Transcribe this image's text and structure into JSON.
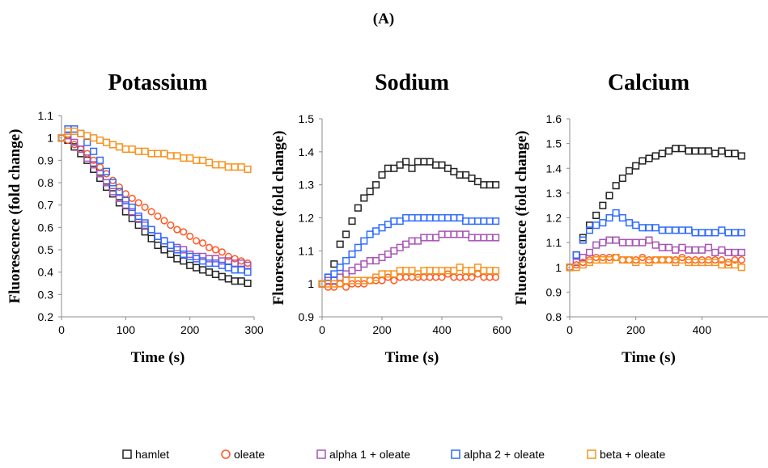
{
  "figure": {
    "panel_label": "(A)"
  },
  "legend": [
    {
      "name": "hamlet",
      "color": "#222222",
      "marker": "square"
    },
    {
      "name": "oleate",
      "color": "#ff5722",
      "marker": "circle"
    },
    {
      "name": "alpha 1 + oleate",
      "color": "#a855b5",
      "marker": "square"
    },
    {
      "name": "alpha 2 + oleate",
      "color": "#2f6bff",
      "marker": "square"
    },
    {
      "name": "beta + oleate",
      "color": "#f7931e",
      "marker": "square"
    }
  ],
  "chart_data": [
    {
      "type": "scatter",
      "title": "Potassium",
      "xlabel": "Time (s)",
      "ylabel": "Fluorescence (fold change)",
      "xlim": [
        0,
        300
      ],
      "ylim": [
        0.2,
        1.1
      ],
      "xticks": [
        "0",
        "100",
        "200",
        "300"
      ],
      "yticks": [
        "0.2",
        "0.3",
        "0.4",
        "0.5",
        "0.6",
        "0.7",
        "0.8",
        "0.9",
        "1",
        "1.1"
      ],
      "x": [
        0,
        10,
        20,
        30,
        40,
        50,
        60,
        70,
        80,
        90,
        100,
        110,
        120,
        130,
        140,
        150,
        160,
        170,
        180,
        190,
        200,
        210,
        220,
        230,
        240,
        250,
        260,
        270,
        280,
        290
      ],
      "series": [
        {
          "name": "hamlet",
          "values": [
            1.0,
            0.99,
            0.96,
            0.93,
            0.9,
            0.86,
            0.82,
            0.78,
            0.75,
            0.71,
            0.67,
            0.64,
            0.61,
            0.58,
            0.55,
            0.52,
            0.5,
            0.48,
            0.46,
            0.45,
            0.43,
            0.42,
            0.41,
            0.4,
            0.39,
            0.38,
            0.37,
            0.36,
            0.36,
            0.35
          ]
        },
        {
          "name": "oleate",
          "values": [
            1.0,
            0.99,
            0.97,
            0.95,
            0.93,
            0.9,
            0.87,
            0.84,
            0.81,
            0.78,
            0.75,
            0.73,
            0.71,
            0.69,
            0.67,
            0.65,
            0.63,
            0.61,
            0.59,
            0.58,
            0.56,
            0.54,
            0.53,
            0.51,
            0.5,
            0.49,
            0.47,
            0.46,
            0.45,
            0.44
          ]
        },
        {
          "name": "alpha 1 + oleate",
          "values": [
            1.0,
            1.01,
            0.98,
            0.95,
            0.91,
            0.88,
            0.84,
            0.8,
            0.76,
            0.73,
            0.7,
            0.67,
            0.64,
            0.61,
            0.59,
            0.56,
            0.54,
            0.52,
            0.51,
            0.5,
            0.48,
            0.47,
            0.47,
            0.46,
            0.46,
            0.45,
            0.45,
            0.44,
            0.44,
            0.43
          ]
        },
        {
          "name": "alpha 2 + oleate",
          "values": [
            1.0,
            1.04,
            1.04,
            1.02,
            0.98,
            0.94,
            0.9,
            0.85,
            0.8,
            0.76,
            0.72,
            0.69,
            0.65,
            0.62,
            0.59,
            0.56,
            0.54,
            0.52,
            0.5,
            0.48,
            0.47,
            0.46,
            0.45,
            0.44,
            0.44,
            0.43,
            0.42,
            0.41,
            0.41,
            0.4
          ]
        },
        {
          "name": "beta + oleate",
          "values": [
            1.0,
            1.03,
            1.03,
            1.02,
            1.01,
            1.0,
            0.99,
            0.98,
            0.97,
            0.96,
            0.95,
            0.95,
            0.94,
            0.94,
            0.93,
            0.93,
            0.93,
            0.92,
            0.92,
            0.91,
            0.91,
            0.9,
            0.9,
            0.89,
            0.88,
            0.88,
            0.87,
            0.87,
            0.87,
            0.86
          ]
        }
      ]
    },
    {
      "type": "scatter",
      "title": "Sodium",
      "xlabel": "Time (s)",
      "ylabel": "Fluorescence (fold change)",
      "xlim": [
        0,
        600
      ],
      "ylim": [
        0.9,
        1.5
      ],
      "xticks": [
        "0",
        "200",
        "400",
        "600"
      ],
      "yticks": [
        "0.9",
        "1",
        "1.1",
        "1.2",
        "1.3",
        "1.4",
        "1.5"
      ],
      "x": [
        0,
        20,
        40,
        60,
        80,
        100,
        120,
        140,
        160,
        180,
        200,
        220,
        240,
        260,
        280,
        300,
        320,
        340,
        360,
        380,
        400,
        420,
        440,
        460,
        480,
        500,
        520,
        540,
        560,
        580
      ],
      "series": [
        {
          "name": "hamlet",
          "values": [
            1.0,
            1.02,
            1.06,
            1.12,
            1.15,
            1.19,
            1.23,
            1.26,
            1.28,
            1.3,
            1.33,
            1.35,
            1.35,
            1.36,
            1.37,
            1.35,
            1.37,
            1.37,
            1.37,
            1.36,
            1.36,
            1.35,
            1.34,
            1.33,
            1.33,
            1.32,
            1.31,
            1.3,
            1.3,
            1.3
          ]
        },
        {
          "name": "oleate",
          "values": [
            1.0,
            0.99,
            0.99,
            1.0,
            0.99,
            1.0,
            1.0,
            1.0,
            1.01,
            1.01,
            1.01,
            1.02,
            1.01,
            1.02,
            1.02,
            1.02,
            1.02,
            1.02,
            1.02,
            1.02,
            1.02,
            1.03,
            1.02,
            1.02,
            1.02,
            1.02,
            1.03,
            1.02,
            1.02,
            1.02
          ]
        },
        {
          "name": "alpha 1 + oleate",
          "values": [
            1.0,
            1.01,
            1.01,
            1.02,
            1.03,
            1.04,
            1.05,
            1.06,
            1.07,
            1.07,
            1.08,
            1.09,
            1.1,
            1.11,
            1.12,
            1.13,
            1.13,
            1.14,
            1.14,
            1.14,
            1.15,
            1.15,
            1.15,
            1.15,
            1.15,
            1.14,
            1.14,
            1.14,
            1.14,
            1.14
          ]
        },
        {
          "name": "alpha 2 + oleate",
          "values": [
            1.0,
            1.02,
            1.03,
            1.05,
            1.07,
            1.09,
            1.11,
            1.13,
            1.15,
            1.16,
            1.17,
            1.18,
            1.19,
            1.19,
            1.2,
            1.2,
            1.2,
            1.2,
            1.2,
            1.2,
            1.2,
            1.2,
            1.2,
            1.2,
            1.19,
            1.19,
            1.19,
            1.19,
            1.19,
            1.19
          ]
        },
        {
          "name": "beta + oleate",
          "values": [
            1.0,
            1.0,
            1.0,
            1.0,
            1.01,
            1.01,
            1.01,
            1.01,
            1.01,
            1.02,
            1.03,
            1.03,
            1.03,
            1.04,
            1.04,
            1.04,
            1.03,
            1.04,
            1.04,
            1.04,
            1.04,
            1.04,
            1.04,
            1.05,
            1.04,
            1.04,
            1.05,
            1.04,
            1.04,
            1.04
          ]
        }
      ]
    },
    {
      "type": "scatter",
      "title": "Calcium",
      "xlabel": "Time (s)",
      "ylabel": "Fluorescence (fold change)",
      "xlim": [
        0,
        600
      ],
      "ylim": [
        0.8,
        1.6
      ],
      "xticks": [
        "0",
        "200",
        "400"
      ],
      "yticks": [
        "0.8",
        "0.9",
        "1",
        "1.1",
        "1.2",
        "1.3",
        "1.4",
        "1.5",
        "1.6"
      ],
      "x": [
        0,
        20,
        40,
        60,
        80,
        100,
        120,
        140,
        160,
        180,
        200,
        220,
        240,
        260,
        280,
        300,
        320,
        340,
        360,
        380,
        400,
        420,
        440,
        460,
        480,
        500,
        520
      ],
      "series": [
        {
          "name": "hamlet",
          "values": [
            1.0,
            1.05,
            1.12,
            1.17,
            1.21,
            1.25,
            1.29,
            1.33,
            1.36,
            1.39,
            1.41,
            1.43,
            1.44,
            1.45,
            1.46,
            1.47,
            1.48,
            1.48,
            1.47,
            1.47,
            1.47,
            1.47,
            1.46,
            1.47,
            1.46,
            1.46,
            1.45
          ]
        },
        {
          "name": "oleate",
          "values": [
            1.0,
            1.01,
            1.02,
            1.03,
            1.04,
            1.04,
            1.04,
            1.04,
            1.03,
            1.03,
            1.03,
            1.04,
            1.03,
            1.03,
            1.03,
            1.03,
            1.03,
            1.04,
            1.03,
            1.03,
            1.03,
            1.03,
            1.03,
            1.03,
            1.02,
            1.03,
            1.03
          ]
        },
        {
          "name": "alpha 1 + oleate",
          "values": [
            1.0,
            1.02,
            1.04,
            1.06,
            1.09,
            1.1,
            1.11,
            1.11,
            1.1,
            1.1,
            1.1,
            1.1,
            1.11,
            1.09,
            1.08,
            1.08,
            1.07,
            1.08,
            1.07,
            1.07,
            1.07,
            1.08,
            1.06,
            1.07,
            1.06,
            1.06,
            1.06
          ]
        },
        {
          "name": "alpha 2 + oleate",
          "values": [
            1.0,
            1.05,
            1.11,
            1.15,
            1.17,
            1.18,
            1.2,
            1.22,
            1.2,
            1.18,
            1.17,
            1.16,
            1.16,
            1.16,
            1.15,
            1.15,
            1.15,
            1.15,
            1.15,
            1.14,
            1.14,
            1.14,
            1.14,
            1.15,
            1.14,
            1.14,
            1.14
          ]
        },
        {
          "name": "beta + oleate",
          "values": [
            1.0,
            1.0,
            1.01,
            1.02,
            1.03,
            1.03,
            1.03,
            1.04,
            1.03,
            1.03,
            1.02,
            1.03,
            1.02,
            1.03,
            1.03,
            1.03,
            1.02,
            1.03,
            1.02,
            1.02,
            1.02,
            1.02,
            1.02,
            1.01,
            1.01,
            1.01,
            1.0
          ]
        }
      ]
    }
  ]
}
